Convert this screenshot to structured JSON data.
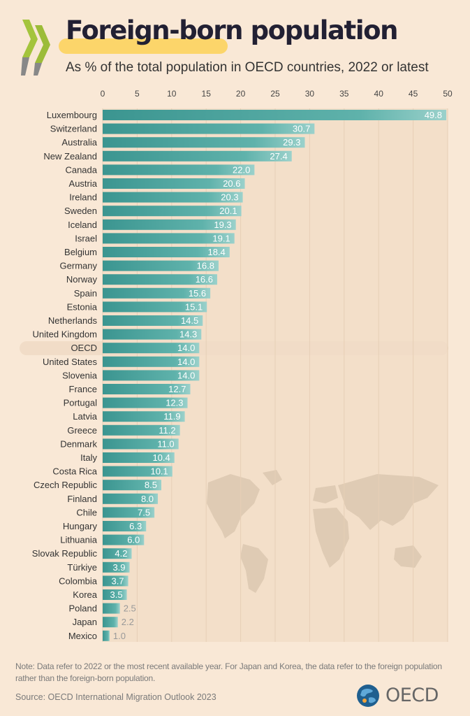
{
  "header": {
    "title": "Foreign-born population",
    "subtitle": "As % of the total population in OECD countries, 2022 or latest"
  },
  "colors": {
    "background": "#f9e8d6",
    "bar": "#3d9c97",
    "bar_light": "#8ec9c3",
    "highlight": "#fcd56a",
    "oecd_row": "#f1dcc7",
    "map": "#dfcbb4",
    "plot_area": "#f3dfc9"
  },
  "chart_data": {
    "type": "bar",
    "orientation": "horizontal",
    "title": "Foreign-born population",
    "subtitle": "As % of the total population in OECD countries, 2022 or latest",
    "xlabel": "",
    "ylabel": "",
    "xlim": [
      0,
      50
    ],
    "ticks": [
      0,
      5,
      10,
      15,
      20,
      25,
      30,
      35,
      40,
      45,
      50
    ],
    "tick_position": "top",
    "grid": true,
    "highlighted_category": "OECD",
    "categories": [
      "Luxembourg",
      "Switzerland",
      "Australia",
      "New Zealand",
      "Canada",
      "Austria",
      "Ireland",
      "Sweden",
      "Iceland",
      "Israel",
      "Belgium",
      "Germany",
      "Norway",
      "Spain",
      "Estonia",
      "Netherlands",
      "United Kingdom",
      "OECD",
      "United States",
      "Slovenia",
      "France",
      "Portugal",
      "Latvia",
      "Greece",
      "Denmark",
      "Italy",
      "Costa Rica",
      "Czech Republic",
      "Finland",
      "Chile",
      "Hungary",
      "Lithuania",
      "Slovak Republic",
      "Türkiye",
      "Colombia",
      "Korea",
      "Poland",
      "Japan",
      "Mexico"
    ],
    "values": [
      49.8,
      30.7,
      29.3,
      27.4,
      22.0,
      20.6,
      20.3,
      20.1,
      19.3,
      19.1,
      18.4,
      16.8,
      16.6,
      15.6,
      15.1,
      14.5,
      14.3,
      14.0,
      14.0,
      14.0,
      12.7,
      12.3,
      11.9,
      11.2,
      11.0,
      10.4,
      10.1,
      8.5,
      8.0,
      7.5,
      6.3,
      6.0,
      4.2,
      3.9,
      3.7,
      3.5,
      2.5,
      2.2,
      1.0
    ],
    "value_labels": [
      "49.8",
      "30.7",
      "29.3",
      "27.4",
      "22.0",
      "20.6",
      "20.3",
      "20.1",
      "19.3",
      "19.1",
      "18.4",
      "16.8",
      "16.6",
      "15.6",
      "15.1",
      "14.5",
      "14.3",
      "14.0",
      "14.0",
      "14.0",
      "12.7",
      "12.3",
      "11.9",
      "11.2",
      "11.0",
      "10.4",
      "10.1",
      "8.5",
      "8.0",
      "7.5",
      "6.3",
      "6.0",
      "4.2",
      "3.9",
      "3.7",
      "3.5",
      "2.5",
      "2.2",
      "1.0"
    ]
  },
  "footer": {
    "note": "Note:  Data refer to 2022 or the most recent available year. For Japan and Korea, the data refer to the foreign population rather than the foreign-born population.",
    "source": "Source: OECD International Migration Outlook 2023",
    "logo_text": "OECD"
  }
}
